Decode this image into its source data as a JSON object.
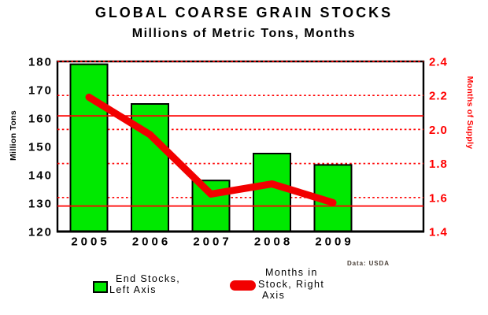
{
  "chart_data": {
    "type": "combo-bar-line",
    "title": "GLOBAL COARSE GRAIN STOCKS",
    "subtitle": "Millions of Metric Tons, Months",
    "source": "Data: USDA",
    "categories": [
      "2005",
      "2006",
      "2007",
      "2008",
      "2009"
    ],
    "series": [
      {
        "name": "End Stocks, Left Axis",
        "type": "bar",
        "axis": "left",
        "color": "#00E900",
        "border_color": "#000000",
        "values": [
          179,
          165,
          138,
          147.5,
          143.5
        ]
      },
      {
        "name": "Months in Stock, Right Axis",
        "type": "line",
        "axis": "right",
        "color": "#F20000",
        "values": [
          2.19,
          1.97,
          1.62,
          1.68,
          1.57
        ]
      }
    ],
    "left_axis": {
      "label": "Million Tons",
      "min": 120,
      "max": 180,
      "ticks": [
        180,
        170,
        160,
        150,
        140,
        130,
        120
      ],
      "tick_color": "#000000"
    },
    "right_axis": {
      "label": "Months of Supply",
      "min": 1.4,
      "max": 2.4,
      "ticks": [
        "2.4",
        "2.2",
        "2.0",
        "1.8",
        "1.6",
        "1.4"
      ],
      "tick_color": "#FF0000"
    },
    "gridlines": {
      "color": "#FF0000",
      "dotted_right_values": [
        2.4,
        2.2,
        2.0,
        1.8,
        1.6
      ],
      "solid_right_values": [
        2.08,
        1.55
      ]
    },
    "background": "#FFFFFF",
    "legend_position": "bottom"
  },
  "legend": {
    "items": [
      {
        "swatch": "bar",
        "color": "#00E900",
        "lines": [
          "End Stocks,",
          "Left Axis"
        ]
      },
      {
        "swatch": "line",
        "color": "#F20000",
        "lines": [
          "Months in",
          "Stock, Right",
          "Axis"
        ]
      }
    ]
  }
}
